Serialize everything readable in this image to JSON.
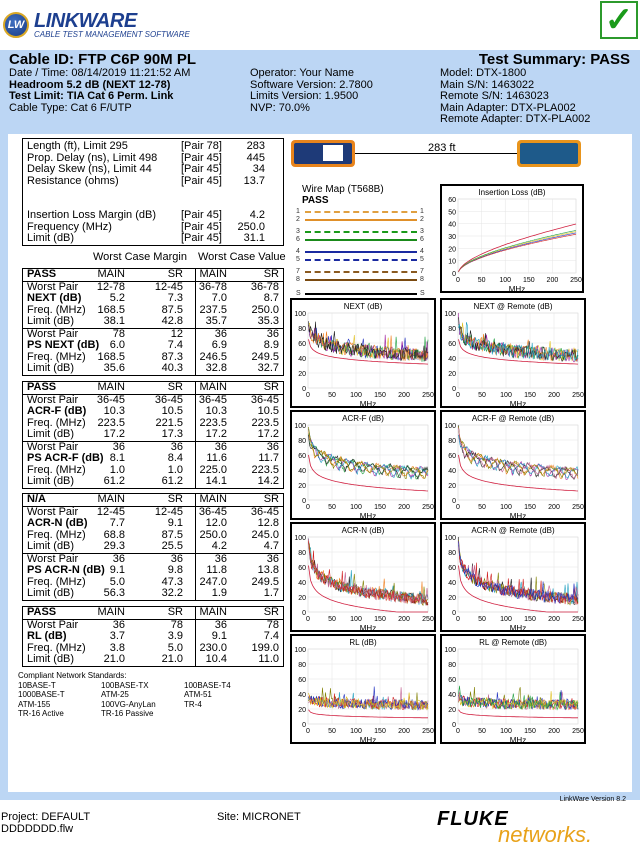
{
  "logo": {
    "initials": "LW",
    "name": "LINKWARE",
    "subtitle": "CABLE TEST MANAGEMENT SOFTWARE"
  },
  "header": {
    "cable_id": "Cable ID: FTP C6P 90M PL",
    "test_summary": "Test Summary: PASS",
    "col1": [
      "Date / Time: 08/14/2019  11:21:52 AM",
      "Headroom 5.2 dB (NEXT 12-78)",
      "Test Limit: TIA Cat 6 Perm. Link",
      "Cable Type: Cat 6 F/UTP"
    ],
    "col2": [
      "Operator: Your Name",
      "Software Version: 2.7800",
      "Limits Version: 1.9500",
      "NVP: 70.0%"
    ],
    "col3": [
      "Model: DTX-1800",
      "Main S/N: 1463022",
      "Remote S/N: 1463023",
      "Main Adapter: DTX-PLA002",
      "Remote Adapter: DTX-PLA002"
    ]
  },
  "summary": {
    "top": [
      [
        "Length (ft), Limit 295",
        "[Pair 78]",
        "283"
      ],
      [
        "Prop. Delay (ns), Limit 498",
        "[Pair 45]",
        "445"
      ],
      [
        "Delay Skew (ns), Limit 44",
        "[Pair 45]",
        "34"
      ],
      [
        "Resistance (ohms)",
        "[Pair 45]",
        "13.7"
      ]
    ],
    "bottom": [
      [
        "Insertion Loss Margin (dB)",
        "[Pair 45]",
        "4.2"
      ],
      [
        "Frequency (MHz)",
        "[Pair 45]",
        "250.0"
      ],
      [
        "Limit (dB)",
        "[Pair 45]",
        "31.1"
      ]
    ]
  },
  "col_headers": {
    "margin": "Worst Case Margin",
    "value": "Worst Case Value"
  },
  "results": [
    {
      "status": "PASS",
      "cols": [
        "MAIN",
        "SR",
        "MAIN",
        "SR"
      ],
      "sections": [
        [
          [
            "Worst Pair",
            "12-78",
            "12-45",
            "36-78",
            "36-78"
          ],
          [
            "NEXT (dB)",
            "5.2",
            "7.3",
            "7.0",
            "8.7"
          ],
          [
            "Freq. (MHz)",
            "168.5",
            "87.5",
            "237.5",
            "250.0"
          ],
          [
            "Limit (dB)",
            "38.1",
            "42.8",
            "35.7",
            "35.3"
          ]
        ],
        [
          [
            "Worst Pair",
            "78",
            "12",
            "36",
            "36"
          ],
          [
            "PS NEXT (dB)",
            "6.0",
            "7.4",
            "6.9",
            "8.9"
          ],
          [
            "Freq. (MHz)",
            "168.5",
            "87.3",
            "246.5",
            "249.5"
          ],
          [
            "Limit (dB)",
            "35.6",
            "40.3",
            "32.8",
            "32.7"
          ]
        ]
      ]
    },
    {
      "status": "PASS",
      "cols": [
        "MAIN",
        "SR",
        "MAIN",
        "SR"
      ],
      "sections": [
        [
          [
            "Worst Pair",
            "36-45",
            "36-45",
            "36-45",
            "36-45"
          ],
          [
            "ACR-F (dB)",
            "10.3",
            "10.5",
            "10.3",
            "10.5"
          ],
          [
            "Freq. (MHz)",
            "223.5",
            "221.5",
            "223.5",
            "223.5"
          ],
          [
            "Limit (dB)",
            "17.2",
            "17.3",
            "17.2",
            "17.2"
          ]
        ],
        [
          [
            "Worst Pair",
            "36",
            "36",
            "36",
            "36"
          ],
          [
            "PS ACR-F (dB)",
            "8.1",
            "8.4",
            "11.6",
            "11.7"
          ],
          [
            "Freq. (MHz)",
            "1.0",
            "1.0",
            "225.0",
            "223.5"
          ],
          [
            "Limit (dB)",
            "61.2",
            "61.2",
            "14.1",
            "14.2"
          ]
        ]
      ]
    },
    {
      "status": "N/A",
      "cols": [
        "MAIN",
        "SR",
        "MAIN",
        "SR"
      ],
      "sections": [
        [
          [
            "Worst Pair",
            "12-45",
            "12-45",
            "36-45",
            "36-45"
          ],
          [
            "ACR-N (dB)",
            "7.7",
            "9.1",
            "12.0",
            "12.8"
          ],
          [
            "Freq. (MHz)",
            "68.8",
            "87.5",
            "250.0",
            "245.0"
          ],
          [
            "Limit (dB)",
            "29.3",
            "25.5",
            "4.2",
            "4.7"
          ]
        ],
        [
          [
            "Worst Pair",
            "36",
            "36",
            "36",
            "36"
          ],
          [
            "PS ACR-N (dB)",
            "9.1",
            "9.8",
            "11.8",
            "13.8"
          ],
          [
            "Freq. (MHz)",
            "5.0",
            "47.3",
            "247.0",
            "249.5"
          ],
          [
            "Limit (dB)",
            "56.3",
            "32.2",
            "1.9",
            "1.7"
          ]
        ]
      ]
    },
    {
      "status": "PASS",
      "cols": [
        "MAIN",
        "SR",
        "MAIN",
        "SR"
      ],
      "sections": [
        [
          [
            "Worst Pair",
            "36",
            "78",
            "36",
            "78"
          ],
          [
            "RL (dB)",
            "3.7",
            "3.9",
            "9.1",
            "7.4"
          ],
          [
            "Freq. (MHz)",
            "3.8",
            "5.0",
            "230.0",
            "199.0"
          ],
          [
            "Limit (dB)",
            "21.0",
            "21.0",
            "10.4",
            "11.0"
          ]
        ]
      ]
    }
  ],
  "standards": {
    "title": "Compliant Network Standards:",
    "items": [
      "10BASE-T",
      "100BASE-TX",
      "100BASE-T4",
      "1000BASE-T",
      "ATM-25",
      "ATM-51",
      "ATM-155",
      "100VG-AnyLan",
      "TR-4",
      "TR-16 Active",
      "TR-16 Passive"
    ]
  },
  "length_label": "283 ft",
  "wiremap": {
    "title": "Wire Map (T568B)",
    "status": "PASS",
    "pins": [
      [
        "1",
        "#e0a040",
        true
      ],
      [
        "2",
        "#e0902a",
        false
      ],
      [
        "3",
        "#1a9a1a",
        true
      ],
      [
        "6",
        "#1a8a1a",
        false
      ],
      [
        "4",
        "#1a2aa0",
        false
      ],
      [
        "5",
        "#1a2aa0",
        true
      ],
      [
        "7",
        "#8a5a20",
        true
      ],
      [
        "8",
        "#7a4a10",
        false
      ],
      [
        "S",
        "#000000",
        false
      ]
    ]
  },
  "charts": [
    {
      "title": "Insertion Loss (dB)",
      "type": "il",
      "ymax": 60,
      "yticks": [
        "0",
        "10",
        "20",
        "30",
        "40",
        "50",
        "60"
      ],
      "xticks": [
        "0",
        "50",
        "100",
        "150",
        "200",
        "250"
      ],
      "xlabel": "MHz"
    },
    {
      "title": "NEXT (dB)",
      "type": "next",
      "ymax": 100,
      "yticks": [
        "0",
        "20",
        "40",
        "60",
        "80",
        "100"
      ],
      "xticks": [
        "0",
        "50",
        "100",
        "150",
        "200",
        "250"
      ],
      "xlabel": "MHz"
    },
    {
      "title": "NEXT @ Remote (dB)",
      "type": "next",
      "ymax": 100,
      "yticks": [
        "0",
        "20",
        "40",
        "60",
        "80",
        "100"
      ],
      "xticks": [
        "0",
        "50",
        "100",
        "150",
        "200",
        "250"
      ],
      "xlabel": "MHz"
    },
    {
      "title": "ACR-F (dB)",
      "type": "acrf",
      "ymax": 100,
      "yticks": [
        "0",
        "20",
        "40",
        "60",
        "80",
        "100"
      ],
      "xticks": [
        "0",
        "50",
        "100",
        "150",
        "200",
        "250"
      ],
      "xlabel": "MHz"
    },
    {
      "title": "ACR-F @ Remote (dB)",
      "type": "acrf",
      "ymax": 100,
      "yticks": [
        "0",
        "20",
        "40",
        "60",
        "80",
        "100"
      ],
      "xticks": [
        "0",
        "50",
        "100",
        "150",
        "200",
        "250"
      ],
      "xlabel": "MHz"
    },
    {
      "title": "ACR-N (dB)",
      "type": "acrn",
      "ymax": 100,
      "yticks": [
        "0",
        "20",
        "40",
        "60",
        "80",
        "100"
      ],
      "xticks": [
        "0",
        "50",
        "100",
        "150",
        "200",
        "250"
      ],
      "xlabel": "MHz"
    },
    {
      "title": "ACR-N @ Remote (dB)",
      "type": "acrn",
      "ymax": 100,
      "yticks": [
        "0",
        "20",
        "40",
        "60",
        "80",
        "100"
      ],
      "xticks": [
        "0",
        "50",
        "100",
        "150",
        "200",
        "250"
      ],
      "xlabel": "MHz"
    },
    {
      "title": "RL (dB)",
      "type": "rl",
      "ymax": 100,
      "yticks": [
        "0",
        "20",
        "40",
        "60",
        "80",
        "100"
      ],
      "xticks": [
        "0",
        "50",
        "100",
        "150",
        "200",
        "250"
      ],
      "xlabel": "MHz"
    },
    {
      "title": "RL @ Remote (dB)",
      "type": "rl",
      "ymax": 100,
      "yticks": [
        "0",
        "20",
        "40",
        "60",
        "80",
        "100"
      ],
      "xticks": [
        "0",
        "50",
        "100",
        "150",
        "200",
        "250"
      ],
      "xlabel": "MHz"
    }
  ],
  "version": "LinkWare Version 8.2",
  "footer": {
    "project": "Project: DEFAULT",
    "file": "DDDDDDD.flw",
    "site": "Site: MICRONET",
    "brand1": "FLUKE",
    "brand2": "networks."
  }
}
